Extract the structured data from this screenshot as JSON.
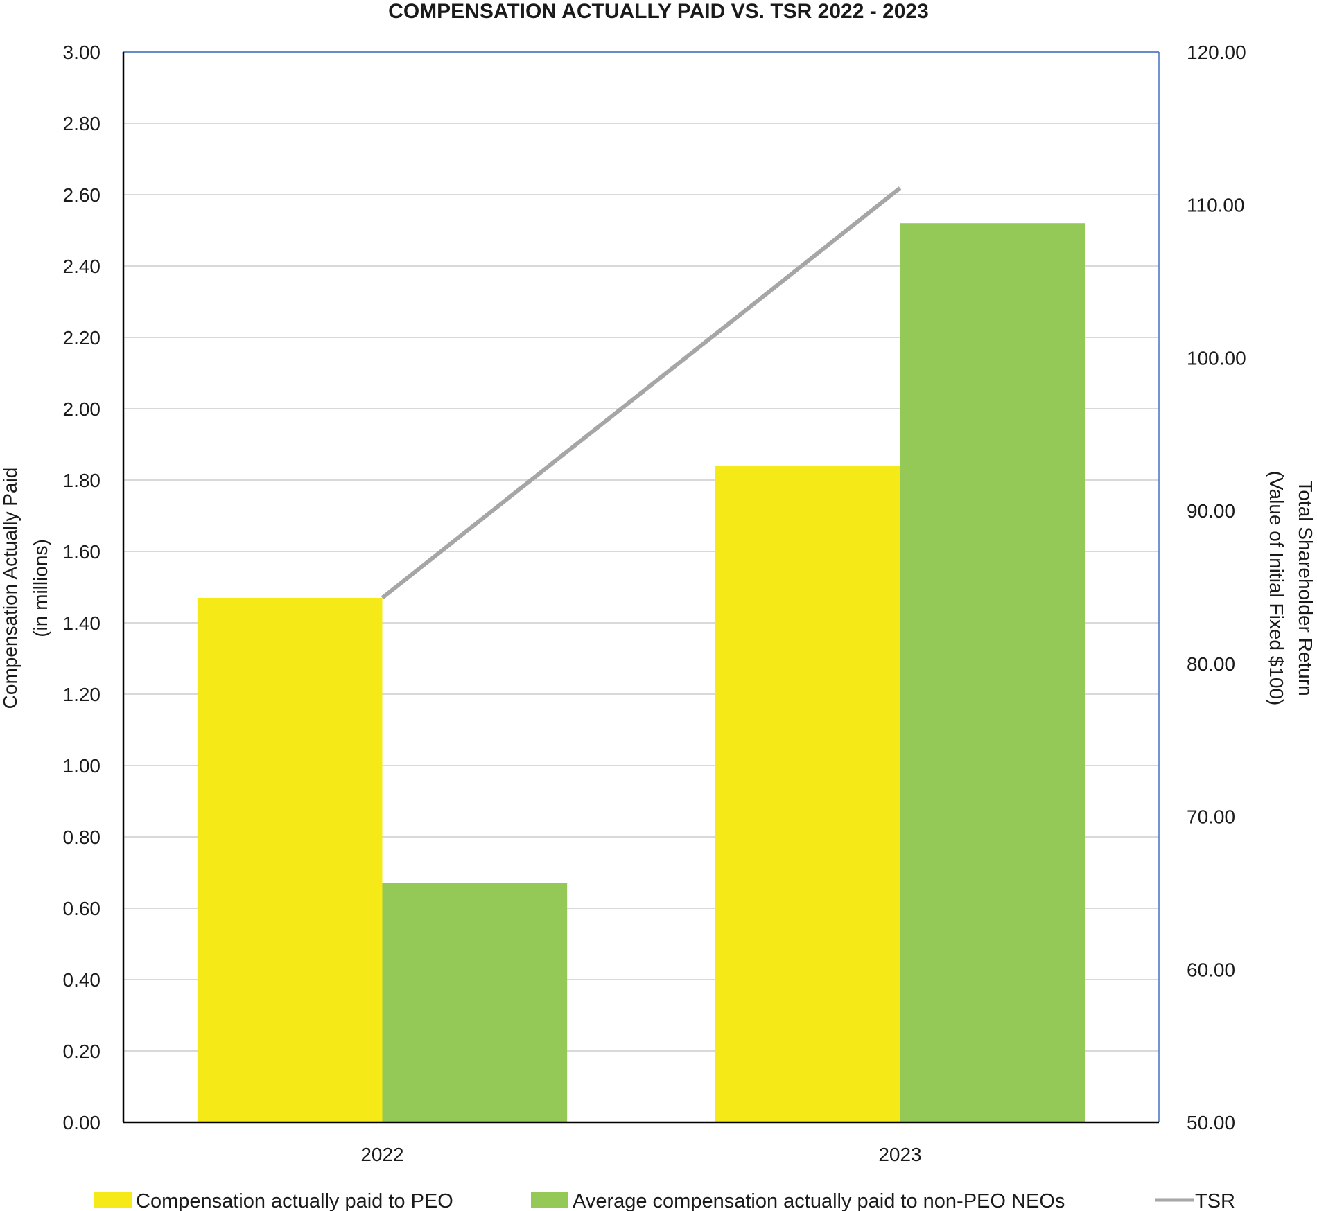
{
  "chart_data": {
    "type": "bar",
    "title": "COMPENSATION ACTUALLY PAID VS. TSR 2022 - 2023",
    "categories": [
      "2022",
      "2023"
    ],
    "series": [
      {
        "name": "Compensation actually paid to PEO",
        "type": "bar",
        "axis": "left",
        "color": "#f5e918",
        "values": [
          1.47,
          1.84
        ]
      },
      {
        "name": "Average compensation actually paid to non-PEO NEOs",
        "type": "bar",
        "axis": "left",
        "color": "#94c957",
        "values": [
          0.67,
          2.52
        ]
      },
      {
        "name": "TSR",
        "type": "line",
        "axis": "right",
        "color": "#a6a6a6",
        "values": [
          84.3,
          111.1
        ]
      }
    ],
    "ylabel_left": [
      "Compensation Actually Paid",
      "(in millions)"
    ],
    "ylabel_right": [
      "Total Shareholder Return",
      "(Value of Initial Fixed $100)"
    ],
    "ylim_left": [
      0,
      3
    ],
    "ylim_right": [
      50,
      120
    ],
    "yticks_left": [
      "0.00",
      "0.20",
      "0.40",
      "0.60",
      "0.80",
      "1.00",
      "1.20",
      "1.40",
      "1.60",
      "1.80",
      "2.00",
      "2.20",
      "2.40",
      "2.60",
      "2.80",
      "3.00"
    ],
    "yticks_right": [
      "50.00",
      "60.00",
      "70.00",
      "80.00",
      "90.00",
      "100.00",
      "110.00",
      "120.00"
    ],
    "grid": true,
    "legend_position": "bottom"
  }
}
